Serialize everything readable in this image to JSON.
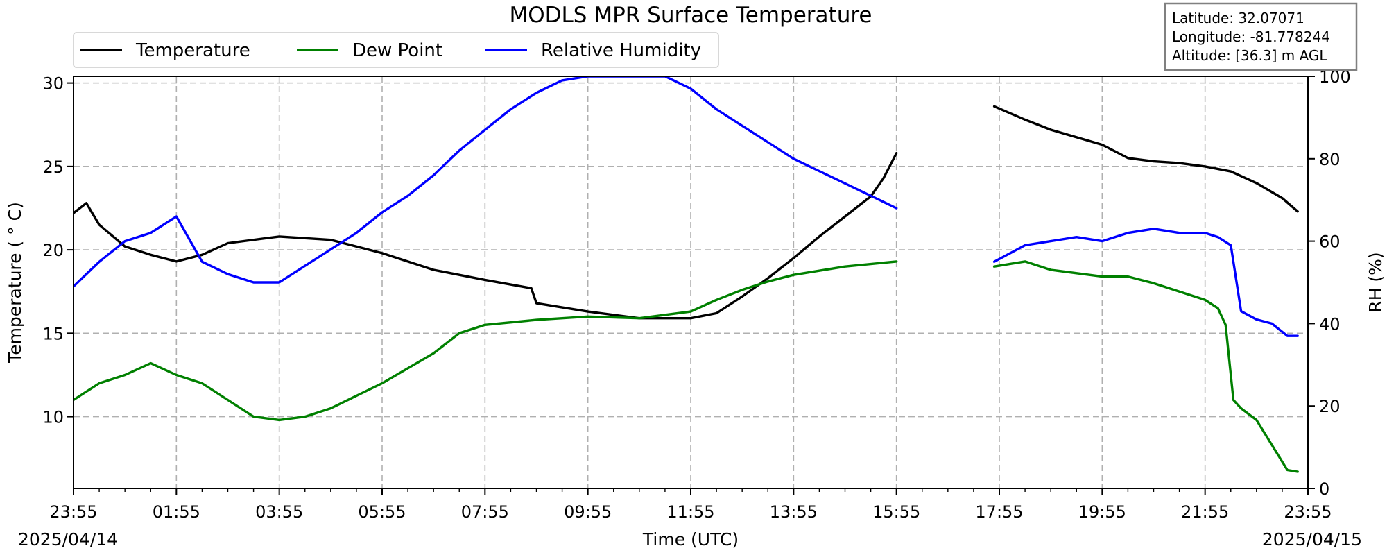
{
  "chart_data": {
    "type": "line",
    "title": "MODLS MPR Surface Temperature",
    "xlabel": "Time (UTC)",
    "ylabel_left": "Temperature ($^\\circ$C)",
    "ylabel_left_display": "Temperature ( ° C)",
    "ylabel_right": "RH (%)",
    "date_start": "2025/04/14",
    "date_end": "2025/04/15",
    "x_tick_labels": [
      "23:55",
      "01:55",
      "03:55",
      "05:55",
      "07:55",
      "09:55",
      "11:55",
      "13:55",
      "15:55",
      "17:55",
      "19:55",
      "21:55",
      "23:55"
    ],
    "xlim_hours": [
      0,
      24
    ],
    "ylim_left": [
      5.7,
      30.4
    ],
    "ylim_right": [
      0,
      100
    ],
    "y_ticks_left": [
      10,
      15,
      20,
      25,
      30
    ],
    "y_ticks_right": [
      0,
      20,
      40,
      60,
      80,
      100
    ],
    "grid": true,
    "legend_position": "top-left",
    "info_box": {
      "latitude": "Latitude: 32.07071",
      "longitude": "Longitude: -81.778244",
      "altitude": "Altitude: [36.3] m AGL"
    },
    "colors": {
      "temperature": "#000000",
      "dew_point": "#008000",
      "rh": "#0000ff"
    },
    "series": [
      {
        "name": "Temperature",
        "axis": "left",
        "color": "#000000",
        "segments": [
          {
            "x": [
              0.0,
              0.25,
              0.5,
              1.0,
              1.5,
              2.0,
              2.5,
              3.0,
              4.0,
              5.0,
              6.0,
              7.0,
              8.0,
              8.9,
              9.0,
              10.0,
              11.0,
              11.5,
              12.0,
              12.5,
              13.0,
              13.5,
              14.0,
              14.5,
              15.0,
              15.5,
              15.75,
              16.0
            ],
            "y": [
              22.2,
              22.8,
              21.5,
              20.2,
              19.7,
              19.3,
              19.7,
              20.4,
              20.8,
              20.6,
              19.8,
              18.8,
              18.2,
              17.7,
              16.8,
              16.3,
              15.9,
              15.9,
              15.9,
              16.2,
              17.2,
              18.3,
              19.5,
              20.8,
              22.0,
              23.2,
              24.3,
              25.8
            ]
          },
          {
            "x": [
              17.9,
              18.5,
              19.0,
              20.0,
              20.5,
              21.0,
              21.5,
              22.0,
              22.5,
              23.0,
              23.5,
              23.8
            ],
            "y": [
              28.6,
              27.8,
              27.2,
              26.3,
              25.5,
              25.3,
              25.2,
              25.0,
              24.7,
              24.0,
              23.1,
              22.3
            ]
          }
        ]
      },
      {
        "name": "Dew Point",
        "axis": "left",
        "color": "#008000",
        "segments": [
          {
            "x": [
              0.0,
              0.5,
              1.0,
              1.5,
              2.0,
              2.5,
              3.0,
              3.5,
              4.0,
              4.5,
              5.0,
              6.0,
              7.0,
              7.5,
              8.0,
              9.0,
              10.0,
              11.0,
              12.0,
              12.5,
              13.0,
              13.5,
              14.0,
              15.0,
              16.0
            ],
            "y": [
              11.0,
              12.0,
              12.5,
              13.2,
              12.5,
              12.0,
              11.0,
              10.0,
              9.8,
              10.0,
              10.5,
              12.0,
              13.8,
              15.0,
              15.5,
              15.8,
              16.0,
              15.9,
              16.3,
              17.0,
              17.6,
              18.1,
              18.5,
              19.0,
              19.3
            ]
          },
          {
            "x": [
              17.9,
              18.5,
              19.0,
              20.0,
              20.5,
              21.0,
              21.5,
              22.0,
              22.25,
              22.4,
              22.55,
              22.7,
              23.0,
              23.3,
              23.6,
              23.8
            ],
            "y": [
              19.0,
              19.3,
              18.8,
              18.4,
              18.4,
              18.0,
              17.5,
              17.0,
              16.5,
              15.5,
              11.0,
              10.5,
              9.8,
              8.3,
              6.8,
              6.7
            ]
          }
        ]
      },
      {
        "name": "Relative Humidity",
        "axis": "right",
        "color": "#0000ff",
        "segments": [
          {
            "x": [
              0.0,
              0.5,
              1.0,
              1.5,
              2.0,
              2.5,
              3.0,
              3.5,
              4.0,
              4.5,
              5.0,
              5.5,
              6.0,
              6.5,
              7.0,
              7.5,
              8.0,
              8.5,
              9.0,
              9.5,
              10.0,
              11.0,
              11.5,
              12.0,
              12.5,
              13.0,
              13.5,
              14.0,
              14.5,
              15.0,
              16.0
            ],
            "y": [
              49.0,
              55.0,
              60.0,
              62.0,
              66.0,
              55.0,
              52.0,
              50.0,
              50.0,
              54.0,
              58.0,
              62.0,
              67.0,
              71.0,
              76.0,
              82.0,
              87.0,
              92.0,
              96.0,
              99.0,
              100.0,
              100.0,
              100.0,
              97.0,
              92.0,
              88.0,
              84.0,
              80.0,
              77.0,
              74.0,
              68.0
            ]
          },
          {
            "x": [
              17.9,
              18.5,
              19.0,
              19.5,
              20.0,
              20.5,
              21.0,
              21.5,
              22.0,
              22.25,
              22.5,
              22.7,
              23.0,
              23.3,
              23.6,
              23.8
            ],
            "y": [
              55.0,
              59.0,
              60.0,
              61.0,
              60.0,
              62.0,
              63.0,
              62.0,
              62.0,
              61.0,
              59.0,
              43.0,
              41.0,
              40.0,
              37.0,
              37.0
            ]
          }
        ]
      }
    ]
  }
}
